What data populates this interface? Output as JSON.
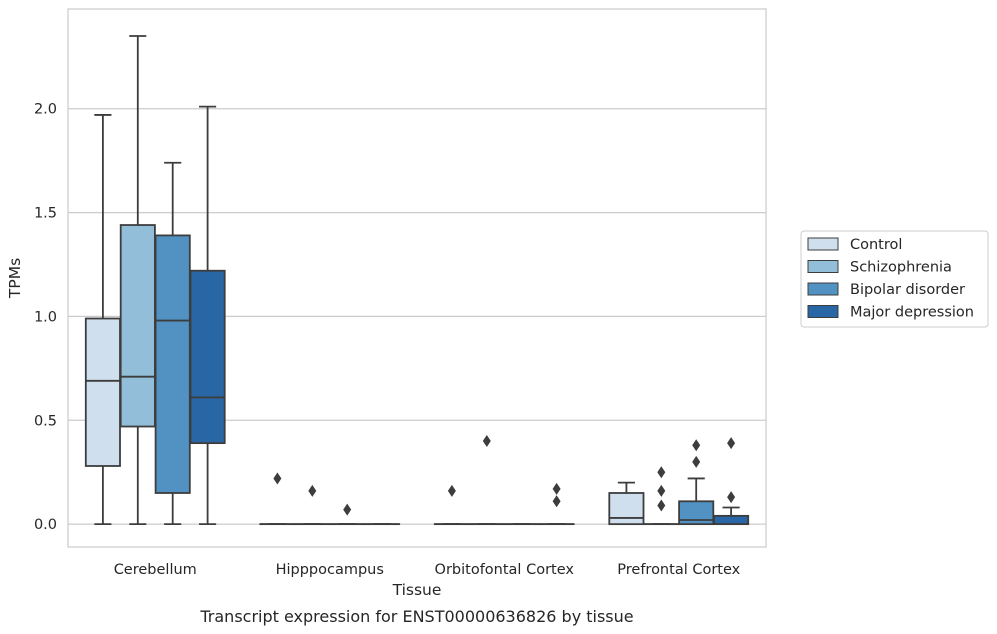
{
  "caption": "Transcript expression for ENST00000636826 by tissue",
  "chart_data": {
    "type": "box",
    "xlabel": "Tissue",
    "ylabel": "TPMs",
    "ylim": [
      -0.11,
      2.48
    ],
    "yticks": [
      "0.0",
      "0.5",
      "1.0",
      "1.5",
      "2.0"
    ],
    "grid": "horizontal",
    "legend_position": "right",
    "categories": [
      "Cerebellum",
      "Hipppocampus",
      "Orbitofontal Cortex",
      "Prefrontal Cortex"
    ],
    "series": [
      {
        "name": "Control",
        "color": "#d0dfed",
        "boxes": [
          {
            "whislo": 0.0,
            "q1": 0.28,
            "med": 0.69,
            "q3": 0.99,
            "whishi": 1.97,
            "fliers": []
          },
          {
            "whislo": 0.0,
            "q1": 0.0,
            "med": 0.0,
            "q3": 0.0,
            "whishi": 0.0,
            "fliers": [
              0.22
            ]
          },
          {
            "whislo": 0.0,
            "q1": 0.0,
            "med": 0.0,
            "q3": 0.0,
            "whishi": 0.0,
            "fliers": [
              0.16
            ]
          },
          {
            "whislo": 0.0,
            "q1": 0.0,
            "med": 0.03,
            "q3": 0.15,
            "whishi": 0.2,
            "fliers": []
          }
        ]
      },
      {
        "name": "Schizophrenia",
        "color": "#93bed9",
        "boxes": [
          {
            "whislo": 0.0,
            "q1": 0.47,
            "med": 0.71,
            "q3": 1.44,
            "whishi": 2.35,
            "fliers": []
          },
          {
            "whislo": 0.0,
            "q1": 0.0,
            "med": 0.0,
            "q3": 0.0,
            "whishi": 0.0,
            "fliers": [
              0.16
            ]
          },
          {
            "whislo": 0.0,
            "q1": 0.0,
            "med": 0.0,
            "q3": 0.0,
            "whishi": 0.0,
            "fliers": [
              0.4
            ]
          },
          {
            "whislo": 0.0,
            "q1": 0.0,
            "med": 0.0,
            "q3": 0.0,
            "whishi": 0.0,
            "fliers": [
              0.09,
              0.16,
              0.25
            ]
          }
        ]
      },
      {
        "name": "Bipolar disorder",
        "color": "#5192c3",
        "boxes": [
          {
            "whislo": 0.0,
            "q1": 0.15,
            "med": 0.98,
            "q3": 1.39,
            "whishi": 1.74,
            "fliers": []
          },
          {
            "whislo": 0.0,
            "q1": 0.0,
            "med": 0.0,
            "q3": 0.0,
            "whishi": 0.0,
            "fliers": [
              0.07
            ]
          },
          {
            "whislo": 0.0,
            "q1": 0.0,
            "med": 0.0,
            "q3": 0.0,
            "whishi": 0.0,
            "fliers": []
          },
          {
            "whislo": 0.0,
            "q1": 0.0,
            "med": 0.02,
            "q3": 0.11,
            "whishi": 0.22,
            "fliers": [
              0.3,
              0.38
            ]
          }
        ]
      },
      {
        "name": "Major depression",
        "color": "#2866a6",
        "boxes": [
          {
            "whislo": 0.0,
            "q1": 0.39,
            "med": 0.61,
            "q3": 1.22,
            "whishi": 2.01,
            "fliers": []
          },
          {
            "whislo": 0.0,
            "q1": 0.0,
            "med": 0.0,
            "q3": 0.0,
            "whishi": 0.0,
            "fliers": []
          },
          {
            "whislo": 0.0,
            "q1": 0.0,
            "med": 0.0,
            "q3": 0.0,
            "whishi": 0.0,
            "fliers": [
              0.11,
              0.17
            ]
          },
          {
            "whislo": 0.0,
            "q1": 0.0,
            "med": 0.0,
            "q3": 0.04,
            "whishi": 0.08,
            "fliers": [
              0.13,
              0.39
            ]
          }
        ]
      }
    ]
  }
}
